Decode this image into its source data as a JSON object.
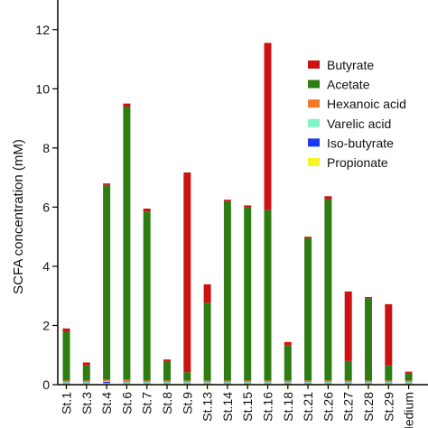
{
  "chart_data": {
    "type": "bar",
    "stacked": true,
    "title": "",
    "xlabel": "",
    "ylabel": "SCFA concentration (mM)",
    "ylim": [
      0,
      13
    ],
    "yticks": [
      0,
      2,
      4,
      6,
      8,
      10,
      12
    ],
    "grid": false,
    "legend_placement": "top-right",
    "categories": [
      "St.1",
      "St.3",
      "St.4",
      "St.6",
      "St.7",
      "St.8",
      "St.9",
      "St.13",
      "St.14",
      "St.15",
      "St.16",
      "St.18",
      "St.21",
      "St.26",
      "St.27",
      "St.28",
      "St.29",
      "Medium"
    ],
    "series": [
      {
        "name": "Propionate",
        "color": "#f5f52a",
        "values": [
          0.05,
          0.05,
          0.05,
          0.05,
          0.05,
          0.05,
          0.05,
          0.05,
          0.05,
          0.05,
          0.05,
          0.05,
          0.05,
          0.05,
          0.05,
          0.05,
          0.05,
          0.05
        ]
      },
      {
        "name": "Iso-butyrate",
        "color": "#1a3cf0",
        "values": [
          0.02,
          0.02,
          0.05,
          0.02,
          0.02,
          0.02,
          0.02,
          0.02,
          0.02,
          0.02,
          0.02,
          0.02,
          0.02,
          0.02,
          0.02,
          0.02,
          0.02,
          0.02
        ]
      },
      {
        "name": "Varelic acid",
        "color": "#7ff5c8",
        "values": [
          0.02,
          0.02,
          0.02,
          0.02,
          0.02,
          0.02,
          0.02,
          0.02,
          0.02,
          0.02,
          0.02,
          0.02,
          0.02,
          0.02,
          0.02,
          0.02,
          0.02,
          0.02
        ]
      },
      {
        "name": "Hexanoic acid",
        "color": "#f07a2a",
        "values": [
          0.05,
          0.05,
          0.05,
          0.08,
          0.05,
          0.05,
          0.05,
          0.05,
          0.05,
          0.05,
          0.05,
          0.05,
          0.05,
          0.05,
          0.05,
          0.05,
          0.05,
          0.05
        ]
      },
      {
        "name": "Acetate",
        "color": "#2e7d12",
        "values": [
          1.66,
          0.51,
          6.58,
          9.23,
          5.71,
          0.63,
          0.28,
          2.63,
          6.06,
          5.86,
          5.76,
          1.2,
          4.81,
          6.13,
          0.66,
          2.78,
          0.51,
          0.26
        ]
      },
      {
        "name": "Butyrate",
        "color": "#cc1111",
        "values": [
          0.1,
          0.1,
          0.05,
          0.1,
          0.1,
          0.08,
          6.75,
          0.62,
          0.05,
          0.06,
          5.65,
          0.1,
          0.05,
          0.1,
          2.35,
          0.04,
          2.07,
          0.04
        ]
      }
    ],
    "legend_order": [
      "Butyrate",
      "Acetate",
      "Hexanoic acid",
      "Varelic acid",
      "Iso-butyrate",
      "Propionate"
    ]
  }
}
